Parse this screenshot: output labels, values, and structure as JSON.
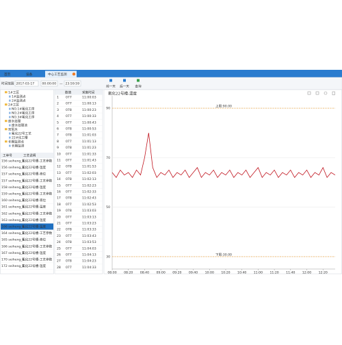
{
  "tabs": [
    "首页",
    "设备",
    "中心工艺监测"
  ],
  "toolbar": {
    "range_label": "时间范围",
    "start_date": "2017-03-17",
    "start_time": "00:00:00",
    "separator": "—",
    "end_time": "23:59:59",
    "buttons": [
      "前一天",
      "后一天",
      "查询"
    ]
  },
  "tree": [
    {
      "label": "1#工区",
      "children": [
        {
          "label": "1#监测点"
        },
        {
          "label": "2#监测点"
        }
      ]
    },
    {
      "label": "2#工区",
      "children": [
        {
          "label": "NO.1#氟化工序"
        },
        {
          "label": "NO.2#氟化工序"
        },
        {
          "label": "NO.3#氟化工序"
        }
      ]
    },
    {
      "label": "废水处理",
      "children": [
        {
          "label": "废水处理池"
        }
      ]
    },
    {
      "label": "双氧水",
      "children": [
        {
          "label": "氟化22号工艺"
        },
        {
          "label": "22#化工槽"
        }
      ]
    },
    {
      "label": "长期监测点",
      "children": [
        {
          "label": "长期监测"
        }
      ]
    }
  ],
  "list": {
    "headers": [
      "工单号",
      "工艺说明"
    ],
    "selected": 10,
    "rows": [
      [
        "156 seiheng_1...",
        "氟化22号槽-工艺参数"
      ],
      [
        "156 seiheng_1...",
        "氟化22号槽-温度"
      ],
      [
        "157 seiheng_1...",
        "氟化22号槽-液位"
      ],
      [
        "157 seiheng_1...",
        "氟化22号槽-工艺参数"
      ],
      [
        "158 seiheng_1...",
        "氟化22号槽-温度"
      ],
      [
        "159 seiheng_1...",
        "氟化22号槽-工艺参数"
      ],
      [
        "160 seiheng_1...",
        "氟化22号槽-液位"
      ],
      [
        "161 seiheng_1...",
        "氟化22号槽-温度"
      ],
      [
        "162 seiheng_1...",
        "氟化22号槽-工艺参数"
      ],
      [
        "163 seiheng_1...",
        "氟化22号槽-温度"
      ],
      [
        "166 seiheng_1...",
        "氟化22号槽-温度"
      ],
      [
        "164 seiheng_1...",
        "氟化22号槽-工艺参数"
      ],
      [
        "165 seiheng_1...",
        "氟化22号槽-液位"
      ],
      [
        "166 seiheng_1...",
        "氟化22号槽-工艺参数"
      ],
      [
        "167 seiheng_1...",
        "氟化22号槽-温度"
      ],
      [
        "170 seiheng_1...",
        "氟化22号槽-工艺参数"
      ],
      [
        "172 seiheng_1...",
        "氟化22号槽-温度"
      ]
    ]
  },
  "readings": {
    "headers": [
      "数值",
      "采集时间"
    ],
    "rows": [
      [
        "1",
        "077",
        "11:00:03"
      ],
      [
        "2",
        "077",
        "11:00:13"
      ],
      [
        "3",
        "078",
        "11:00:23"
      ],
      [
        "4",
        "077",
        "11:00:33"
      ],
      [
        "5",
        "077",
        "11:00:43"
      ],
      [
        "6",
        "078",
        "11:00:53"
      ],
      [
        "7",
        "078",
        "11:01:03"
      ],
      [
        "8",
        "077",
        "11:01:13"
      ],
      [
        "9",
        "078",
        "11:01:23"
      ],
      [
        "10",
        "077",
        "11:01:33"
      ],
      [
        "11",
        "077",
        "11:01:43"
      ],
      [
        "12",
        "078",
        "11:01:53"
      ],
      [
        "13",
        "077",
        "11:02:03"
      ],
      [
        "14",
        "078",
        "11:02:13"
      ],
      [
        "15",
        "077",
        "11:02:23"
      ],
      [
        "16",
        "077",
        "11:02:33"
      ],
      [
        "17",
        "078",
        "11:02:43"
      ],
      [
        "18",
        "077",
        "11:02:53"
      ],
      [
        "19",
        "078",
        "11:03:03"
      ],
      [
        "20",
        "077",
        "11:03:13"
      ],
      [
        "21",
        "077",
        "11:03:23"
      ],
      [
        "22",
        "078",
        "11:03:33"
      ],
      [
        "23",
        "077",
        "11:03:43"
      ],
      [
        "24",
        "078",
        "11:03:53"
      ],
      [
        "25",
        "077",
        "11:04:03"
      ],
      [
        "26",
        "077",
        "11:04:13"
      ],
      [
        "27",
        "078",
        "11:04:23"
      ],
      [
        "28",
        "077",
        "11:04:33"
      ]
    ]
  },
  "chart_data": {
    "type": "line",
    "title": "氟化22号槽-温度",
    "color": "#c0141e",
    "categories": [
      "08:00",
      null,
      null,
      null,
      "08:20",
      null,
      null,
      null,
      "08:40",
      null,
      null,
      null,
      "09:00",
      null,
      null,
      null,
      "09:20",
      null,
      null,
      null,
      "09:40",
      null,
      null,
      null,
      "10:00",
      null,
      null,
      null,
      "10:20",
      null,
      null,
      null,
      "10:40",
      null,
      null,
      null,
      "11:00",
      null,
      null,
      null,
      "11:20",
      null,
      null,
      null,
      "11:40",
      null,
      null,
      null,
      "12:00",
      null,
      null,
      null,
      "12:20",
      null,
      null,
      null
    ],
    "values": [
      64,
      62,
      65,
      63,
      64,
      62,
      65,
      63,
      70,
      80,
      66,
      62,
      64,
      63,
      65,
      62,
      64,
      63,
      65,
      62,
      64,
      66,
      62,
      64,
      63,
      65,
      62,
      64,
      63,
      65,
      62,
      64,
      63,
      65,
      62,
      64,
      66,
      62,
      64,
      63,
      65,
      62,
      64,
      63,
      65,
      62,
      64,
      63,
      65,
      62,
      64,
      63,
      66,
      62,
      64,
      63
    ],
    "ylim": [
      25,
      95
    ],
    "yticks": [
      30,
      50,
      70,
      90
    ],
    "grid": true,
    "limits": [
      {
        "value": 90,
        "label": "上限:90.00",
        "color": "#f0a030"
      },
      {
        "value": 30,
        "label": "下限:30.00",
        "color": "#f0a030"
      }
    ]
  }
}
